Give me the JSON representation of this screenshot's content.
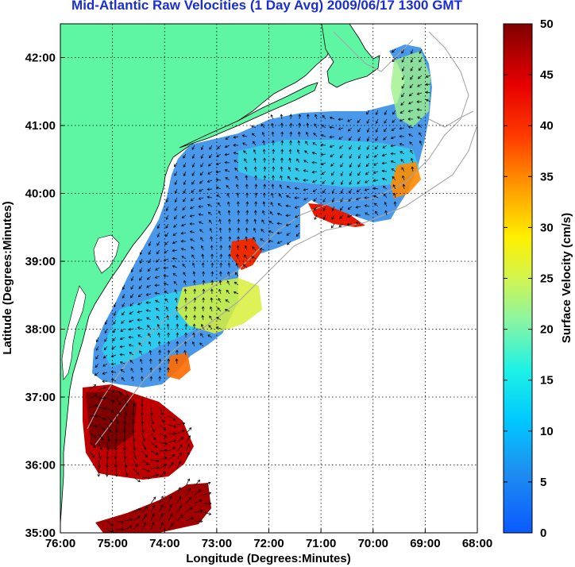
{
  "title": "Mid-Atlantic Raw Velocities (1 Day Avg) 2009/06/17 1300 GMT",
  "map": {
    "xlabel": "Longitude (Degrees:Minutes)",
    "ylabel": "Latitude (Degrees:Minutes)",
    "xlim": [
      -76,
      -68
    ],
    "ylim": [
      35,
      42.5
    ],
    "x_ticks": [
      "76:00",
      "75:00",
      "74:00",
      "73:00",
      "72:00",
      "71:00",
      "70:00",
      "69:00",
      "68:00"
    ],
    "y_ticks": [
      "35:00",
      "36:00",
      "37:00",
      "38:00",
      "39:00",
      "40:00",
      "41:00",
      "42:00"
    ],
    "grid": "dotted",
    "land_color": "#5ef5a3",
    "bathymetry_color": "#a6a6a6"
  },
  "colorbar": {
    "label": "Surface Velocity (cm/s)",
    "range": [
      0,
      50
    ],
    "ticks": [
      "0",
      "5",
      "10",
      "15",
      "20",
      "25",
      "30",
      "35",
      "40",
      "45",
      "50"
    ]
  }
}
